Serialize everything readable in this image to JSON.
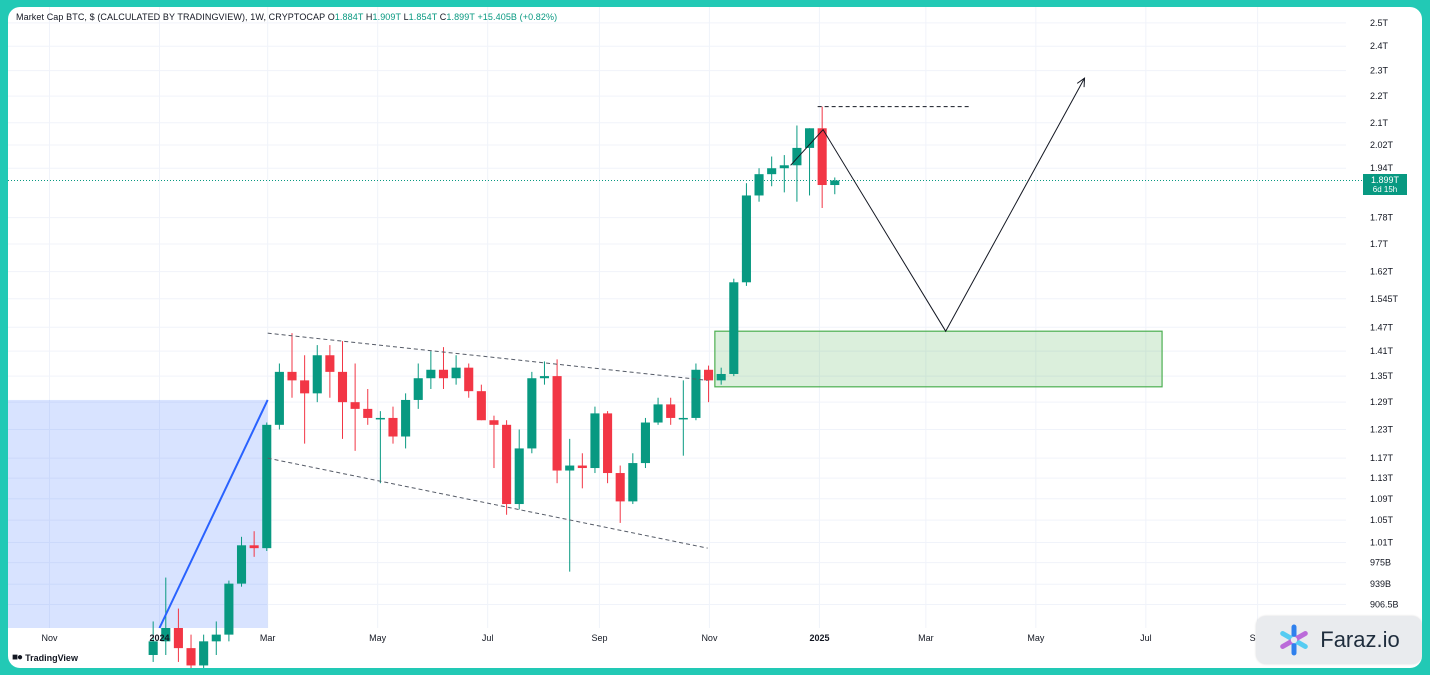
{
  "header": {
    "symbol": "Market Cap BTC, $ (CALCULATED BY TRADINGVIEW), 1W, CRYPTOCAP",
    "o_label": "O",
    "o_value": "1.884T",
    "h_label": "H",
    "h_value": "1.909T",
    "l_label": "L",
    "l_value": "1.854T",
    "c_label": "C",
    "c_value": "1.899T",
    "change": "+15.405B (+0.82%)"
  },
  "price_label": {
    "value": "1.899T",
    "countdown": "6d 15h"
  },
  "branding": {
    "tradingview": "TradingView",
    "watermark": "Faraz.io"
  },
  "colors": {
    "up": "#089981",
    "down": "#f23645",
    "zone": "#4caf50",
    "range": "#2962ff"
  },
  "chart_data": {
    "type": "candlestick",
    "title": "Market Cap BTC, $ (CALCULATED BY TRADINGVIEW), 1W, CRYPTOCAP",
    "y_axis": {
      "scale": "log",
      "tick_labels": [
        "2.5T",
        "2.4T",
        "2.3T",
        "2.2T",
        "2.1T",
        "2.02T",
        "1.94T",
        "1.78T",
        "1.7T",
        "1.62T",
        "1.545T",
        "1.47T",
        "1.41T",
        "1.35T",
        "1.29T",
        "1.23T",
        "1.17T",
        "1.13T",
        "1.09T",
        "1.05T",
        "1.01T",
        "975B",
        "939B",
        "906.5B"
      ],
      "tick_values": [
        2500,
        2400,
        2300,
        2200,
        2100,
        2020,
        1940,
        1780,
        1700,
        1620,
        1545,
        1470,
        1410,
        1350,
        1290,
        1230,
        1170,
        1130,
        1090,
        1050,
        1010,
        975,
        939,
        906.5
      ],
      "range": [
        870,
        2570
      ]
    },
    "x_axis": {
      "tick_labels": [
        "Nov",
        "2024",
        "Mar",
        "May",
        "Jul",
        "Sep",
        "Nov",
        "2025",
        "Mar",
        "May",
        "Jul",
        "Sep"
      ],
      "tick_dates": [
        "2023-11-01",
        "2024-01-01",
        "2024-03-01",
        "2024-05-01",
        "2024-07-01",
        "2024-09-01",
        "2024-11-01",
        "2025-01-01",
        "2025-03-01",
        "2025-05-01",
        "2025-07-01",
        "2025-09-01"
      ],
      "bold_ticks": [
        "2024",
        "2025"
      ],
      "range": [
        "2023-10-09",
        "2025-10-20"
      ]
    },
    "candles": [
      {
        "date": "2023-12-25",
        "o": 830,
        "h": 880,
        "l": 820,
        "c": 850
      },
      {
        "date": "2024-01-01",
        "o": 850,
        "h": 950,
        "l": 830,
        "c": 870
      },
      {
        "date": "2024-01-08",
        "o": 870,
        "h": 900,
        "l": 820,
        "c": 840
      },
      {
        "date": "2024-01-15",
        "o": 840,
        "h": 860,
        "l": 790,
        "c": 815
      },
      {
        "date": "2024-01-22",
        "o": 815,
        "h": 860,
        "l": 780,
        "c": 850
      },
      {
        "date": "2024-01-29",
        "o": 850,
        "h": 880,
        "l": 830,
        "c": 860
      },
      {
        "date": "2024-02-05",
        "o": 860,
        "h": 945,
        "l": 850,
        "c": 940
      },
      {
        "date": "2024-02-12",
        "o": 940,
        "h": 1020,
        "l": 935,
        "c": 1005
      },
      {
        "date": "2024-02-19",
        "o": 1005,
        "h": 1030,
        "l": 985,
        "c": 1000
      },
      {
        "date": "2024-02-26",
        "o": 1000,
        "h": 1245,
        "l": 995,
        "c": 1240
      },
      {
        "date": "2024-03-04",
        "o": 1240,
        "h": 1380,
        "l": 1230,
        "c": 1360
      },
      {
        "date": "2024-03-11",
        "o": 1360,
        "h": 1455,
        "l": 1300,
        "c": 1340
      },
      {
        "date": "2024-03-18",
        "o": 1340,
        "h": 1400,
        "l": 1200,
        "c": 1310
      },
      {
        "date": "2024-03-25",
        "o": 1310,
        "h": 1425,
        "l": 1290,
        "c": 1400
      },
      {
        "date": "2024-04-01",
        "o": 1400,
        "h": 1425,
        "l": 1300,
        "c": 1360
      },
      {
        "date": "2024-04-08",
        "o": 1360,
        "h": 1435,
        "l": 1210,
        "c": 1290
      },
      {
        "date": "2024-04-15",
        "o": 1290,
        "h": 1380,
        "l": 1185,
        "c": 1275
      },
      {
        "date": "2024-04-22",
        "o": 1275,
        "h": 1320,
        "l": 1240,
        "c": 1255
      },
      {
        "date": "2024-04-29",
        "o": 1255,
        "h": 1270,
        "l": 1120,
        "c": 1255
      },
      {
        "date": "2024-05-06",
        "o": 1255,
        "h": 1280,
        "l": 1200,
        "c": 1215
      },
      {
        "date": "2024-05-13",
        "o": 1215,
        "h": 1310,
        "l": 1190,
        "c": 1295
      },
      {
        "date": "2024-05-20",
        "o": 1295,
        "h": 1380,
        "l": 1275,
        "c": 1345
      },
      {
        "date": "2024-05-27",
        "o": 1345,
        "h": 1410,
        "l": 1320,
        "c": 1365
      },
      {
        "date": "2024-06-03",
        "o": 1365,
        "h": 1420,
        "l": 1320,
        "c": 1345
      },
      {
        "date": "2024-06-10",
        "o": 1345,
        "h": 1400,
        "l": 1330,
        "c": 1370
      },
      {
        "date": "2024-06-17",
        "o": 1370,
        "h": 1380,
        "l": 1300,
        "c": 1315
      },
      {
        "date": "2024-06-24",
        "o": 1315,
        "h": 1330,
        "l": 1250,
        "c": 1250
      },
      {
        "date": "2024-07-01",
        "o": 1250,
        "h": 1260,
        "l": 1150,
        "c": 1240
      },
      {
        "date": "2024-07-08",
        "o": 1240,
        "h": 1250,
        "l": 1060,
        "c": 1080
      },
      {
        "date": "2024-07-15",
        "o": 1080,
        "h": 1230,
        "l": 1070,
        "c": 1190
      },
      {
        "date": "2024-07-22",
        "o": 1190,
        "h": 1360,
        "l": 1180,
        "c": 1345
      },
      {
        "date": "2024-07-29",
        "o": 1345,
        "h": 1385,
        "l": 1330,
        "c": 1350
      },
      {
        "date": "2024-08-05",
        "o": 1350,
        "h": 1390,
        "l": 1120,
        "c": 1145
      },
      {
        "date": "2024-08-12",
        "o": 1145,
        "h": 1210,
        "l": 960,
        "c": 1155
      },
      {
        "date": "2024-08-19",
        "o": 1155,
        "h": 1180,
        "l": 1110,
        "c": 1150
      },
      {
        "date": "2024-08-26",
        "o": 1150,
        "h": 1280,
        "l": 1140,
        "c": 1265
      },
      {
        "date": "2024-09-02",
        "o": 1265,
        "h": 1270,
        "l": 1120,
        "c": 1140
      },
      {
        "date": "2024-09-09",
        "o": 1140,
        "h": 1155,
        "l": 1045,
        "c": 1085
      },
      {
        "date": "2024-09-16",
        "o": 1085,
        "h": 1180,
        "l": 1080,
        "c": 1160
      },
      {
        "date": "2024-09-23",
        "o": 1160,
        "h": 1255,
        "l": 1150,
        "c": 1245
      },
      {
        "date": "2024-09-30",
        "o": 1245,
        "h": 1300,
        "l": 1240,
        "c": 1285
      },
      {
        "date": "2024-10-07",
        "o": 1285,
        "h": 1300,
        "l": 1240,
        "c": 1255
      },
      {
        "date": "2024-10-14",
        "o": 1255,
        "h": 1340,
        "l": 1175,
        "c": 1255
      },
      {
        "date": "2024-10-21",
        "o": 1255,
        "h": 1380,
        "l": 1250,
        "c": 1365
      },
      {
        "date": "2024-10-28",
        "o": 1365,
        "h": 1375,
        "l": 1290,
        "c": 1340
      },
      {
        "date": "2024-11-04",
        "o": 1340,
        "h": 1370,
        "l": 1330,
        "c": 1355
      },
      {
        "date": "2024-11-11",
        "o": 1355,
        "h": 1600,
        "l": 1350,
        "c": 1590
      },
      {
        "date": "2024-11-18",
        "o": 1590,
        "h": 1890,
        "l": 1580,
        "c": 1850
      },
      {
        "date": "2024-11-25",
        "o": 1850,
        "h": 1940,
        "l": 1830,
        "c": 1920
      },
      {
        "date": "2024-12-02",
        "o": 1920,
        "h": 1980,
        "l": 1880,
        "c": 1940
      },
      {
        "date": "2024-12-09",
        "o": 1940,
        "h": 1985,
        "l": 1860,
        "c": 1950
      },
      {
        "date": "2024-12-16",
        "o": 1950,
        "h": 2090,
        "l": 1830,
        "c": 2010
      },
      {
        "date": "2024-12-23",
        "o": 2010,
        "h": 2080,
        "l": 1850,
        "c": 2080
      },
      {
        "date": "2024-12-30",
        "o": 2080,
        "h": 2160,
        "l": 1810,
        "c": 1884
      },
      {
        "date": "2025-01-06",
        "o": 1884,
        "h": 1909,
        "l": 1854,
        "c": 1899
      }
    ],
    "drawings": {
      "channel_upper": [
        [
          "2024-03-01",
          1455
        ],
        [
          "2024-10-31",
          1340
        ]
      ],
      "channel_lower": [
        [
          "2024-03-01",
          1170
        ],
        [
          "2024-10-31",
          1000
        ]
      ],
      "rally_line": [
        [
          "2024-01-01",
          870
        ],
        [
          "2024-03-01",
          1295
        ]
      ],
      "range_box": {
        "from": "2023-10-09",
        "to": "2024-03-01",
        "top": 1295,
        "bottom": 870
      },
      "demand_zone": {
        "from": "2024-11-04",
        "to": "2025-07-10",
        "top": 1460,
        "bottom": 1325
      },
      "high_level": {
        "from": "2024-12-31",
        "to": "2025-03-25",
        "value": 2160
      },
      "projection_path": [
        [
          "2024-12-16",
          1950
        ],
        [
          "2025-01-03",
          2075
        ],
        [
          "2025-03-12",
          1460
        ],
        [
          "2025-05-28",
          2270
        ]
      ]
    }
  }
}
